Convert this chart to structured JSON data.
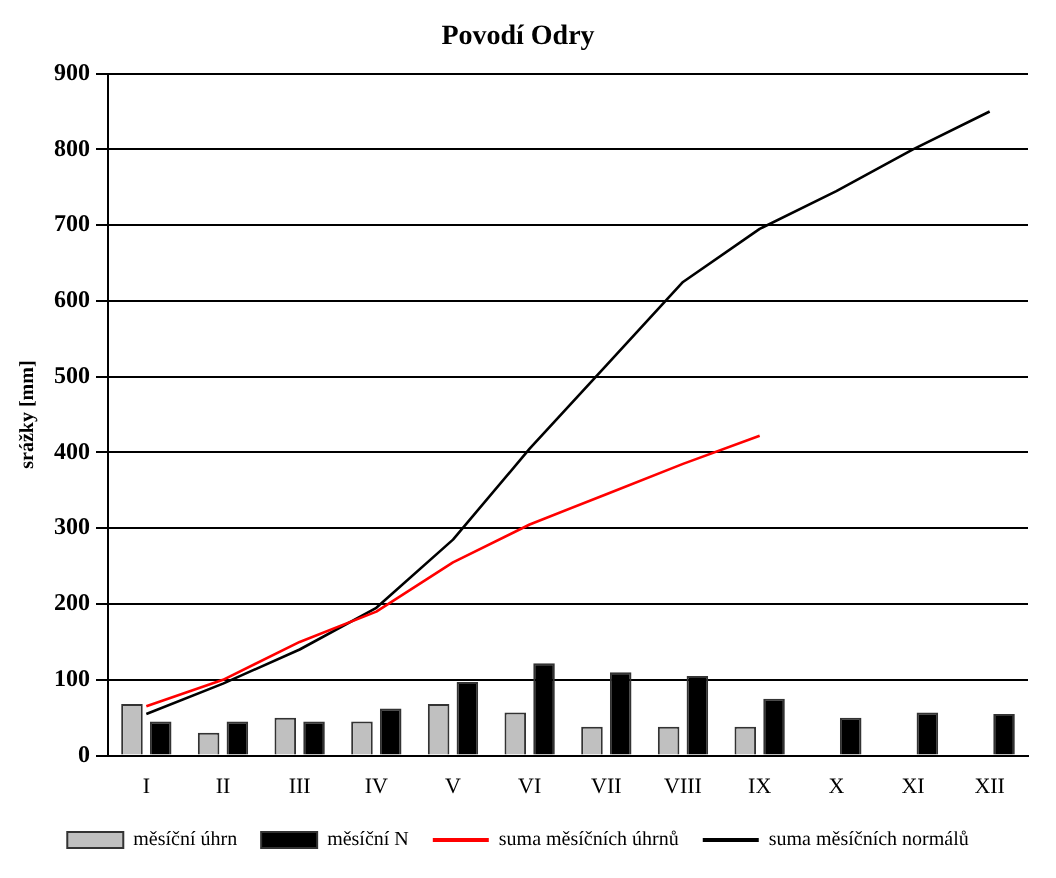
{
  "chart_data": {
    "type": "bar",
    "title": "Povodí Odry",
    "ylabel": "srážky [mm]",
    "categories": [
      "I",
      "II",
      "III",
      "IV",
      "V",
      "VI",
      "VII",
      "VIII",
      "IX",
      "X",
      "XI",
      "XII"
    ],
    "series": [
      {
        "name": "měsíční úhrn",
        "color": "#c0c0c0",
        "values": [
          68,
          30,
          50,
          45,
          68,
          57,
          38,
          38,
          38,
          null,
          null,
          null
        ]
      },
      {
        "name": "měsíční N",
        "color": "#000000",
        "values": [
          45,
          45,
          45,
          62,
          97,
          122,
          110,
          105,
          75,
          50,
          57,
          55
        ]
      },
      {
        "name": "suma měsíčních úhrnů",
        "type": "line",
        "color": "#ff0000",
        "values": [
          65,
          100,
          150,
          190,
          255,
          305,
          345,
          385,
          422,
          null,
          null,
          null
        ]
      },
      {
        "name": "suma měsíčních normálů",
        "type": "line",
        "color": "#000000",
        "values": [
          55,
          95,
          140,
          195,
          285,
          405,
          515,
          625,
          695,
          745,
          800,
          850
        ]
      }
    ],
    "ylim": [
      0,
      900
    ],
    "yticks": [
      0,
      100,
      200,
      300,
      400,
      500,
      600,
      700,
      800,
      900
    ],
    "grid": "y",
    "legend": "bottom",
    "marker": "none"
  }
}
